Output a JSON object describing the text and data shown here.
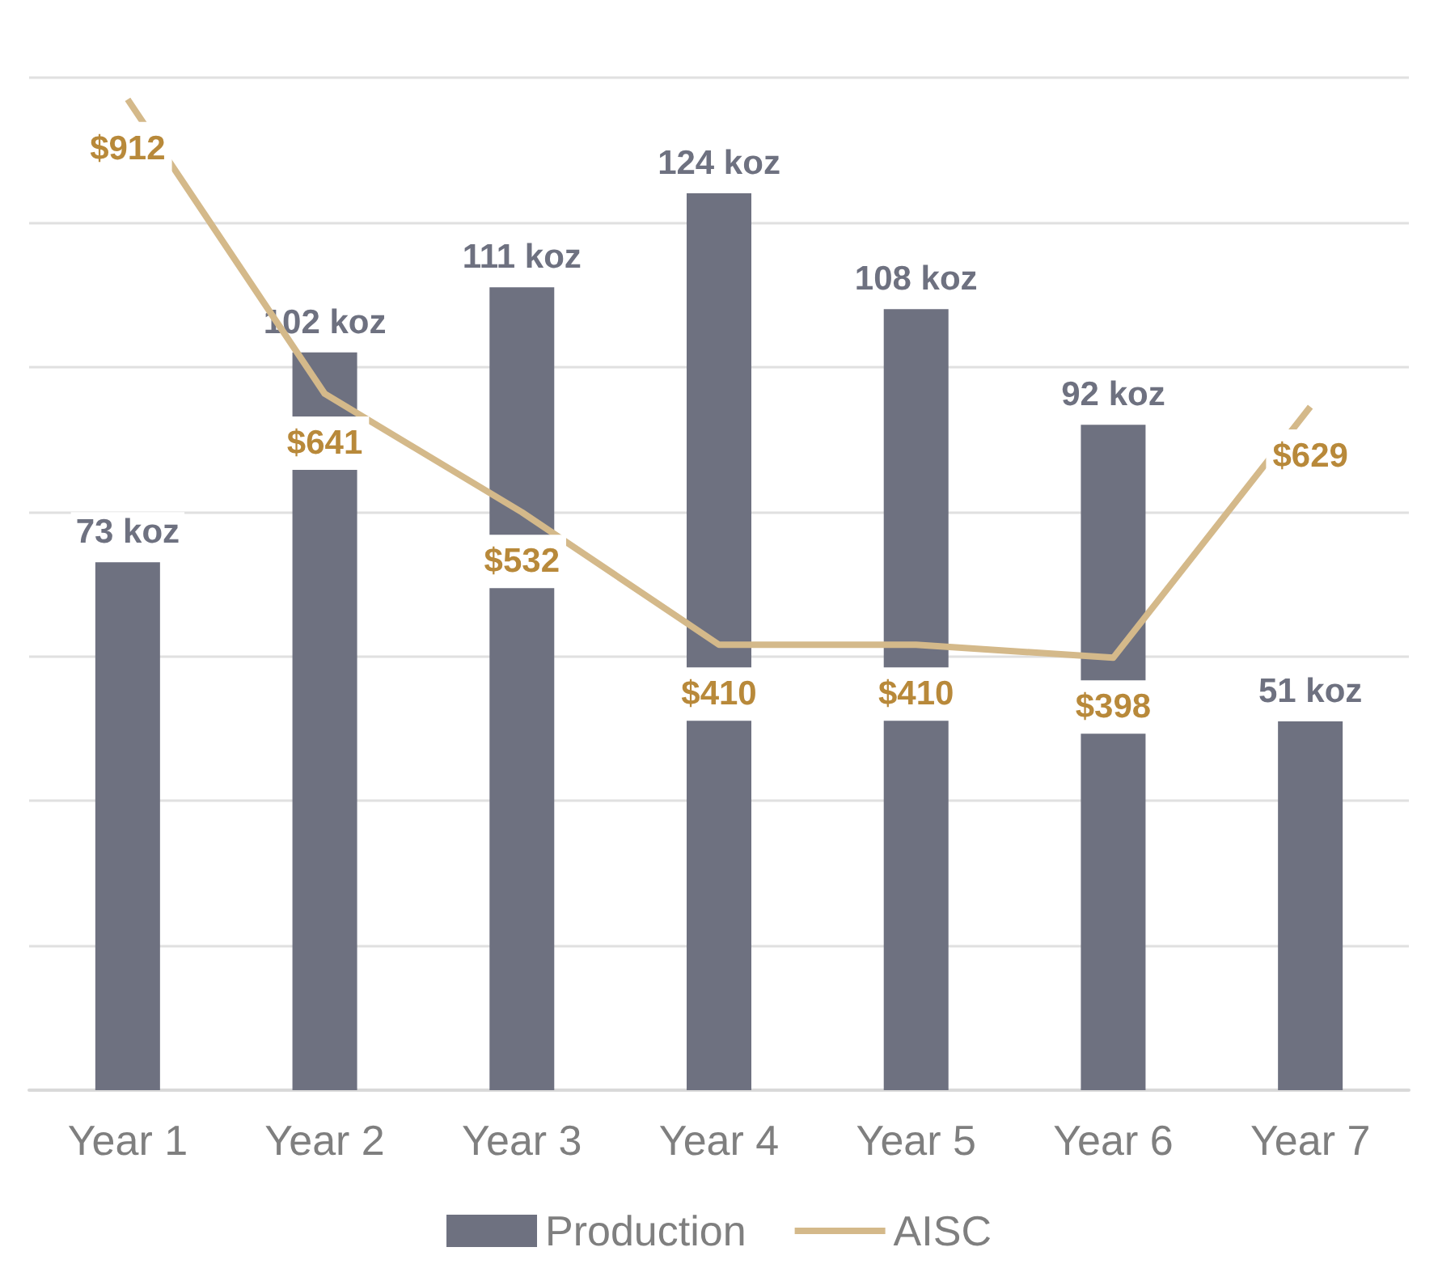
{
  "chart_data": {
    "type": "bar",
    "categories": [
      "Year 1",
      "Year 2",
      "Year 3",
      "Year 4",
      "Year 5",
      "Year 6",
      "Year 7"
    ],
    "series": [
      {
        "name": "Production",
        "color": "#6e7180",
        "values": [
          73,
          102,
          111,
          124,
          108,
          92,
          51
        ],
        "value_labels": [
          "73 koz",
          "102 koz",
          "111 koz",
          "124 koz",
          "108 koz",
          "92 koz",
          "51 koz"
        ]
      },
      {
        "name": "AISC",
        "type": "line",
        "axis": "y2",
        "color": "#d4b98a",
        "values": [
          912,
          641,
          532,
          410,
          410,
          398,
          629
        ],
        "value_labels": [
          "$912",
          "$641",
          "$532",
          "$410",
          "$410",
          "$398",
          "$629"
        ]
      }
    ],
    "ylim": [
      0,
      140
    ],
    "yticks": [
      {
        "value": 0,
        "label": null
      },
      {
        "value": 20,
        "label": null
      },
      {
        "value": 40,
        "label": null
      },
      {
        "value": 60,
        "label": null
      },
      {
        "value": 80,
        "label": null
      },
      {
        "value": 100,
        "label": null
      },
      {
        "value": 120,
        "label": null
      },
      {
        "value": 140,
        "label": null
      }
    ],
    "y2lim": [
      0,
      932
    ],
    "tick_labels": "x",
    "grid": "y",
    "legend": "bottom",
    "marker": "none"
  }
}
